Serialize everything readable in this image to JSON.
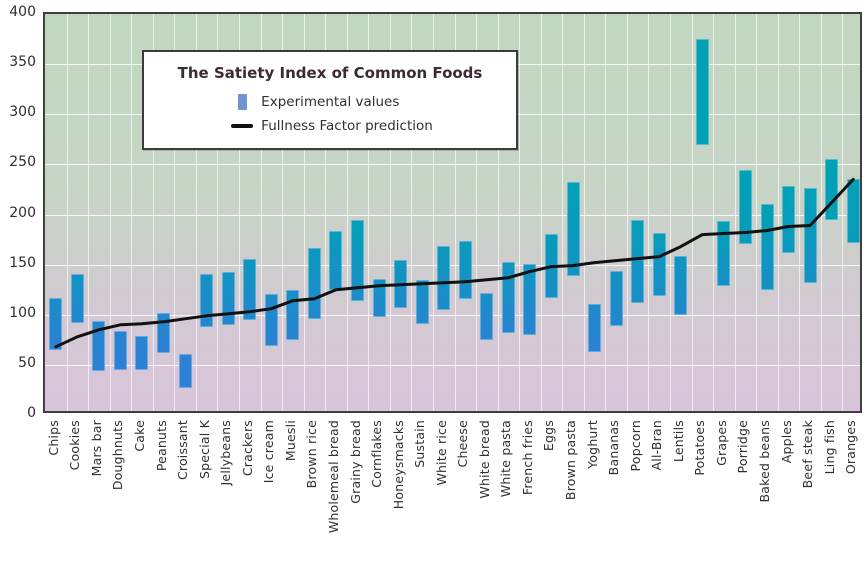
{
  "legend": {
    "title": "The Satiety Index of Common Foods",
    "items": [
      {
        "label": "Experimental values",
        "icon": "bar-swatch-icon",
        "color": "#6f94cf"
      },
      {
        "label": "Fullness Factor prediction",
        "icon": "line-dash-icon",
        "color": "#111111"
      }
    ]
  },
  "axes": {
    "y_ticks": [
      "400",
      "350",
      "300",
      "250",
      "200",
      "150",
      "100",
      "50",
      "0"
    ]
  },
  "colors": {
    "bar_high": "#00a1b5",
    "bar_low": "#2e7fd6",
    "prediction_line": "#111111",
    "plot_bg_top": "#c1d7c0",
    "plot_bg_bottom": "#d9c4da",
    "grid": "#ffffff",
    "plot_border": "#3f3f3f"
  },
  "chart_data": {
    "type": "bar",
    "subtype": "columnrange-with-line",
    "title": "The Satiety Index of Common Foods",
    "xlabel": "",
    "ylabel": "",
    "ylim": [
      0,
      400
    ],
    "ytick_interval": 50,
    "grid": true,
    "legend_position": "top-left-inside",
    "categories": [
      "Chips",
      "Cookies",
      "Mars bar",
      "Doughnuts",
      "Cake",
      "Peanuts",
      "Croissant",
      "Special K",
      "Jellybeans",
      "Crackers",
      "Ice cream",
      "Muesli",
      "Brown rice",
      "Wholemeal bread",
      "Grainy bread",
      "Cornflakes",
      "Honeysmacks",
      "Sustain",
      "White rice",
      "Cheese",
      "White bread",
      "White pasta",
      "French fries",
      "Eggs",
      "Brown pasta",
      "Yoghurt",
      "Bananas",
      "Popcorn",
      "All-Bran",
      "Lentils",
      "Potatoes",
      "Grapes",
      "Porridge",
      "Baked beans",
      "Apples",
      "Beef steak",
      "Ling fish",
      "Oranges"
    ],
    "series": [
      {
        "name": "Experimental values",
        "type": "columnrange",
        "low": [
          65,
          92,
          44,
          45,
          45,
          62,
          27,
          88,
          90,
          95,
          69,
          75,
          96,
          125,
          114,
          98,
          107,
          91,
          105,
          116,
          75,
          82,
          80,
          117,
          139,
          63,
          89,
          112,
          119,
          100,
          269,
          129,
          171,
          125,
          162,
          132,
          195,
          172
        ],
        "high": [
          117,
          141,
          94,
          84,
          79,
          102,
          61,
          141,
          143,
          156,
          121,
          125,
          167,
          184,
          195,
          136,
          155,
          135,
          169,
          174,
          122,
          153,
          151,
          181,
          232,
          111,
          144,
          195,
          182,
          159,
          375,
          194,
          244,
          210,
          228,
          226,
          255,
          235
        ]
      },
      {
        "name": "Fullness Factor prediction",
        "type": "line",
        "values": [
          68,
          78,
          85,
          90,
          91,
          93,
          96,
          99,
          101,
          103,
          106,
          114,
          116,
          125,
          127,
          129,
          130,
          131,
          132,
          133,
          135,
          137,
          143,
          148,
          149,
          152,
          154,
          156,
          158,
          168,
          180,
          181,
          182,
          184,
          188,
          189,
          212,
          235
        ]
      }
    ]
  }
}
